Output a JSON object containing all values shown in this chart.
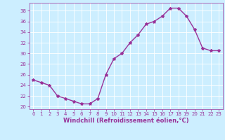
{
  "x": [
    0,
    1,
    2,
    3,
    4,
    5,
    6,
    7,
    8,
    9,
    10,
    11,
    12,
    13,
    14,
    15,
    16,
    17,
    18,
    19,
    20,
    21,
    22,
    23
  ],
  "y": [
    25,
    24.5,
    24,
    22,
    21.5,
    21,
    20.5,
    20.5,
    21.5,
    26,
    29,
    30,
    32,
    33.5,
    35.5,
    36,
    37,
    38.5,
    38.5,
    37,
    34.5,
    31,
    30.5,
    30.5
  ],
  "line_color": "#993399",
  "marker": "*",
  "marker_size": 3,
  "bg_color": "#cceeff",
  "grid_color": "#ffffff",
  "xlabel": "Windchill (Refroidissement éolien,°C)",
  "xlim": [
    -0.5,
    23.5
  ],
  "ylim": [
    19.5,
    39.5
  ],
  "yticks": [
    20,
    22,
    24,
    26,
    28,
    30,
    32,
    34,
    36,
    38
  ],
  "xticks": [
    0,
    1,
    2,
    3,
    4,
    5,
    6,
    7,
    8,
    9,
    10,
    11,
    12,
    13,
    14,
    15,
    16,
    17,
    18,
    19,
    20,
    21,
    22,
    23
  ],
  "tick_color": "#993399",
  "label_color": "#993399",
  "tick_fontsize": 5,
  "xlabel_fontsize": 6,
  "line_width": 1.0
}
